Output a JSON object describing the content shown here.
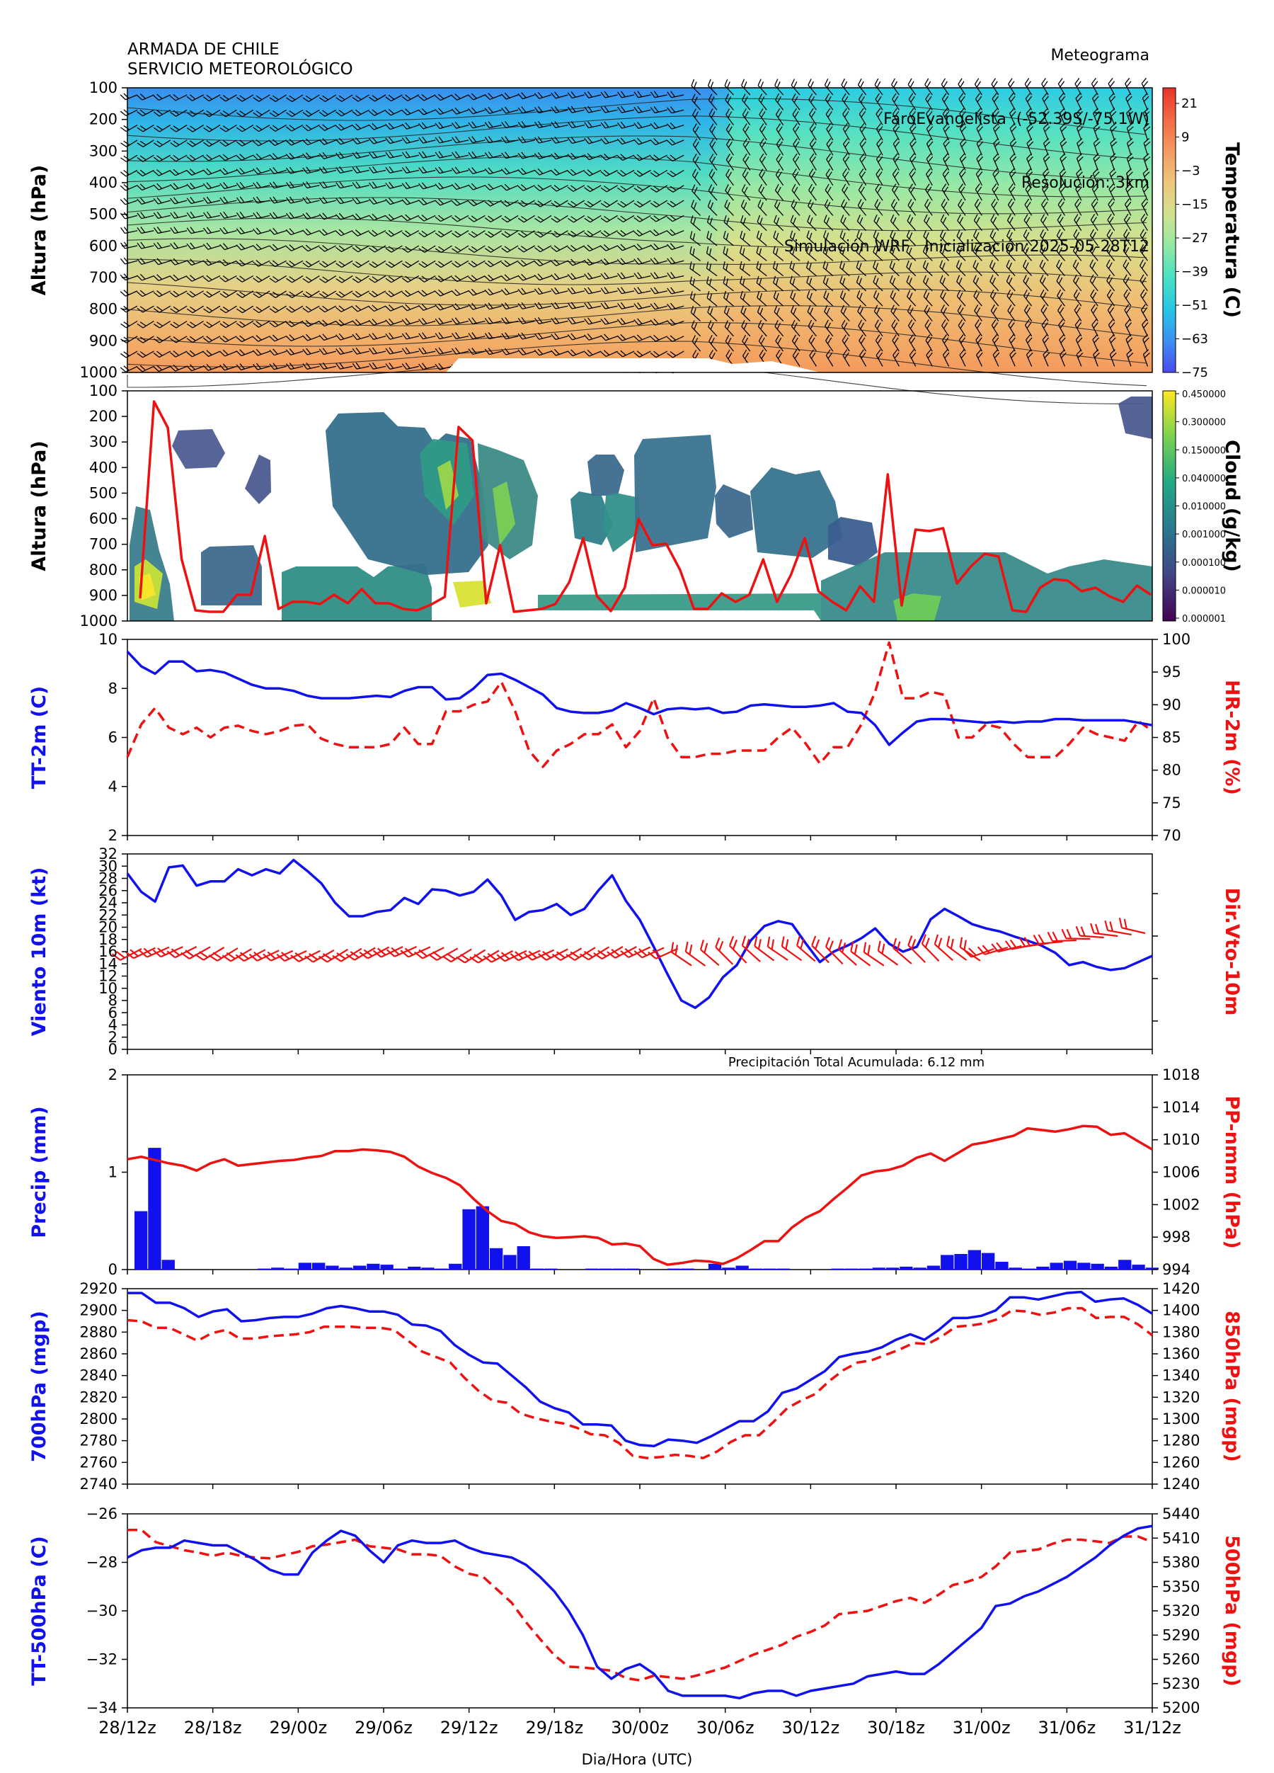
{
  "header": {
    "org1": "ARMADA DE CHILE",
    "org2": "SERVICIO METEOROLÓGICO",
    "meta1": "Meteograma",
    "meta2": "FaroEvangelista  (-52.39S/-75.1W)",
    "meta3": "Resolución: 3km",
    "meta4": "Simulación WRF   Inicialización:2025-05-28T12"
  },
  "chart_data": [
    {
      "type": "heatmap",
      "id": "temperature",
      "ylabel": "Altura (hPa)",
      "clabel": "Temperatura (C)",
      "yticks": [
        "100",
        "200",
        "300",
        "400",
        "500",
        "600",
        "700",
        "800",
        "900",
        "1000"
      ],
      "colorbar_ticks": [
        "21",
        "9",
        "−3",
        "−15",
        "−27",
        "−39",
        "−51",
        "−63",
        "−75"
      ],
      "colors": [
        "#4a4af0",
        "#3c8ff0",
        "#29c6e6",
        "#47e0c2",
        "#92e9a3",
        "#d1e28e",
        "#efc77c",
        "#f49a62",
        "#f26b44",
        "#e8312a"
      ]
    },
    {
      "type": "heatmap",
      "id": "cloud",
      "ylabel": "Altura (hPa)",
      "clabel": "Cloud (g/kg)",
      "yticks": [
        "100",
        "200",
        "300",
        "400",
        "500",
        "600",
        "700",
        "800",
        "900",
        "1000"
      ],
      "colorbar_ticks": [
        "0.450000",
        "0.300000",
        "0.150000",
        "0.040000",
        "0.010000",
        "0.001000",
        "0.000100",
        "0.000010",
        "0.000001"
      ],
      "colors": [
        "#440154",
        "#414487",
        "#2a788e",
        "#22a884",
        "#7ad151",
        "#fde725"
      ]
    },
    {
      "type": "line",
      "id": "tt2m",
      "ylabel": "TT-2m (C)",
      "y2label": "HR-2m (%)",
      "ylim": [
        2,
        10
      ],
      "y2lim": [
        70,
        100
      ],
      "yticks": [
        "2",
        "4",
        "6",
        "8",
        "10"
      ],
      "y2ticks": [
        "70",
        "75",
        "80",
        "85",
        "90",
        "95",
        "100"
      ],
      "series": [
        {
          "axis": "left",
          "color": "#1111ee",
          "dash": false,
          "values": [
            9.5,
            8.9,
            8.6,
            9.1,
            9.1,
            8.7,
            8.75,
            8.65,
            8.4,
            8.15,
            8.0,
            8.0,
            7.9,
            7.7,
            7.6,
            7.6,
            7.6,
            7.65,
            7.7,
            7.65,
            7.9,
            8.05,
            8.05,
            7.55,
            7.6,
            8.0,
            8.55,
            8.6,
            8.35,
            8.05,
            7.75,
            7.2,
            7.05,
            7.0,
            7.0,
            7.1,
            7.4,
            7.2,
            6.95,
            7.15,
            7.2,
            7.15,
            7.2,
            7.0,
            7.05,
            7.3,
            7.35,
            7.3,
            7.25,
            7.25,
            7.3,
            7.4,
            7.05,
            7.0,
            6.5,
            5.7,
            6.2,
            6.65,
            6.75,
            6.75,
            6.7,
            6.65,
            6.6,
            6.65,
            6.6,
            6.65,
            6.65,
            6.75,
            6.75,
            6.7,
            6.7,
            6.7,
            6.7,
            6.6,
            6.5
          ]
        },
        {
          "axis": "right",
          "color": "#ee1111",
          "dash": true,
          "values": [
            82,
            87,
            89.5,
            86.5,
            85.5,
            86.5,
            85,
            86.5,
            86.8,
            86,
            85.5,
            86,
            86.8,
            87,
            84.8,
            84,
            83.5,
            83.5,
            83.5,
            84,
            86.5,
            84,
            84,
            89,
            89,
            90,
            90.5,
            93.5,
            89,
            83,
            80.5,
            83,
            84,
            85.5,
            85.5,
            87,
            83.5,
            86,
            91,
            85,
            82,
            82,
            82.5,
            82.5,
            83,
            83,
            83,
            85,
            86.5,
            84,
            81,
            83.5,
            83.5,
            87,
            92,
            99.5,
            91,
            91,
            92,
            91.5,
            85,
            85,
            87,
            86.5,
            84,
            82,
            82,
            82,
            84,
            86.5,
            85.5,
            85,
            84.5,
            87.5,
            86
          ]
        }
      ]
    },
    {
      "type": "line",
      "id": "wind10m",
      "ylabel": "Viento 10m (kt)",
      "y2label": "Dir.Vto-10m",
      "ylim": [
        0,
        32
      ],
      "yticks": [
        "0",
        "2",
        "4",
        "6",
        "8",
        "10",
        "12",
        "14",
        "16",
        "18",
        "20",
        "22",
        "24",
        "26",
        "28",
        "30",
        "32"
      ],
      "series": [
        {
          "axis": "left",
          "color": "#1111ee",
          "dash": false,
          "values": [
            28.8,
            25.8,
            24.2,
            29.8,
            30.1,
            26.8,
            27.5,
            27.5,
            29.5,
            28.5,
            29.5,
            28.8,
            31.0,
            29.2,
            27.2,
            24.0,
            21.8,
            21.8,
            22.5,
            22.8,
            24.8,
            23.8,
            26.2,
            26.0,
            25.2,
            25.8,
            27.8,
            25.2,
            21.2,
            22.5,
            22.8,
            23.8,
            22.0,
            23.0,
            26.0,
            28.5,
            24.3,
            21.2,
            16.8,
            12.3,
            8.0,
            6.8,
            8.5,
            11.8,
            13.8,
            17.8,
            20.2,
            21.0,
            20.5,
            17.3,
            14.3,
            16.0,
            17.0,
            18.2,
            19.8,
            17.3,
            16.0,
            16.8,
            21.3,
            23.0,
            21.8,
            20.5,
            19.8,
            19.3,
            18.5,
            17.8,
            17.0,
            15.8,
            13.8,
            14.3,
            13.5,
            13.0,
            13.3,
            14.3,
            15.3
          ]
        }
      ]
    },
    {
      "type": "bar",
      "id": "precip",
      "title": "Precipitación Total Acumulada: 6.12 mm",
      "ylabel": "Precip (mm)",
      "y2label": "PP-nmm (hPa)",
      "ylim": [
        0,
        2
      ],
      "y2lim": [
        994,
        1018
      ],
      "yticks": [
        "0",
        "1",
        "2"
      ],
      "y2ticks": [
        "994",
        "998",
        "1002",
        "1006",
        "1010",
        "1014",
        "1018"
      ],
      "series": [
        {
          "axis": "left",
          "type": "bar",
          "color": "#1111ee",
          "values": [
            0.6,
            1.25,
            0.1,
            0,
            0,
            0,
            0,
            0,
            0,
            0.01,
            0.02,
            0.01,
            0.07,
            0.07,
            0.04,
            0.02,
            0.04,
            0.06,
            0.05,
            0.01,
            0.03,
            0.02,
            0.01,
            0.06,
            0.62,
            0.65,
            0.22,
            0.15,
            0.24,
            0.01,
            0.01,
            0,
            0,
            0.01,
            0.01,
            0.01,
            0.01,
            0,
            0,
            0.01,
            0.01,
            0,
            0.06,
            0.02,
            0.04,
            0.01,
            0.01,
            0.01,
            0,
            0,
            0,
            0.01,
            0.01,
            0.01,
            0.02,
            0.02,
            0.03,
            0.02,
            0.04,
            0.15,
            0.16,
            0.2,
            0.17,
            0.08,
            0.02,
            0.01,
            0.03,
            0.07,
            0.09,
            0.07,
            0.06,
            0.03,
            0.1,
            0.05,
            0.02
          ]
        },
        {
          "axis": "right",
          "type": "line",
          "color": "#ee1111",
          "dash": false,
          "values": [
            1007.6,
            1007.9,
            1007.5,
            1007.1,
            1006.8,
            1006.2,
            1007.1,
            1007.6,
            1006.8,
            1007.0,
            1007.2,
            1007.4,
            1007.5,
            1007.8,
            1008.0,
            1008.6,
            1008.6,
            1008.8,
            1008.7,
            1008.5,
            1007.9,
            1006.7,
            1005.9,
            1005.3,
            1004.4,
            1002.7,
            1001.2,
            1000.0,
            999.6,
            998.6,
            998.1,
            997.9,
            998.0,
            998.1,
            997.9,
            997.1,
            997.2,
            996.9,
            995.3,
            994.6,
            994.8,
            995.1,
            995.0,
            994.7,
            995.4,
            996.4,
            997.5,
            997.5,
            999.2,
            1000.4,
            1001.2,
            1002.7,
            1004.1,
            1005.6,
            1006.1,
            1006.3,
            1006.8,
            1007.8,
            1008.3,
            1007.4,
            1008.4,
            1009.4,
            1009.7,
            1010.1,
            1010.5,
            1011.4,
            1011.2,
            1011.0,
            1011.3,
            1011.7,
            1011.6,
            1010.6,
            1010.8,
            1009.8,
            1008.8
          ]
        }
      ]
    },
    {
      "type": "line",
      "id": "geop",
      "ylabel": "700hPa (mgp)",
      "y2label": "850hPa (mgp)",
      "ylim": [
        2740,
        2920
      ],
      "y2lim": [
        1240,
        1420
      ],
      "yticks": [
        "2740",
        "2760",
        "2780",
        "2800",
        "2820",
        "2840",
        "2860",
        "2880",
        "2900",
        "2920"
      ],
      "y2ticks": [
        "1240",
        "1260",
        "1280",
        "1300",
        "1320",
        "1340",
        "1360",
        "1380",
        "1400",
        "1420"
      ],
      "series": [
        {
          "axis": "left",
          "color": "#1111ee",
          "dash": false,
          "values": [
            2916,
            2916,
            2907,
            2907,
            2902,
            2894,
            2899,
            2901,
            2890,
            2891,
            2893,
            2894,
            2894,
            2897,
            2902,
            2904,
            2902,
            2899,
            2899,
            2896,
            2887,
            2886,
            2881,
            2868,
            2859,
            2852,
            2851,
            2840,
            2829,
            2816,
            2810,
            2806,
            2795,
            2795,
            2794,
            2780,
            2776,
            2775,
            2781,
            2780,
            2778,
            2784,
            2791,
            2798,
            2798,
            2807,
            2824,
            2828,
            2836,
            2844,
            2857,
            2860,
            2862,
            2866,
            2873,
            2878,
            2873,
            2882,
            2893,
            2893,
            2895,
            2900,
            2912,
            2912,
            2910,
            2913,
            2916,
            2917,
            2908,
            2910,
            2911,
            2905,
            2897
          ]
        },
        {
          "axis": "right",
          "color": "#ee1111",
          "dash": true,
          "values": [
            1391,
            1390,
            1384,
            1384,
            1378,
            1372,
            1379,
            1382,
            1374,
            1374,
            1376,
            1377,
            1378,
            1380,
            1385,
            1385,
            1385,
            1384,
            1384,
            1382,
            1372,
            1362,
            1357,
            1352,
            1338,
            1326,
            1317,
            1315,
            1305,
            1301,
            1298,
            1296,
            1292,
            1286,
            1285,
            1278,
            1266,
            1264,
            1265,
            1267,
            1266,
            1264,
            1270,
            1279,
            1285,
            1285,
            1297,
            1310,
            1317,
            1323,
            1335,
            1345,
            1352,
            1354,
            1359,
            1364,
            1370,
            1369,
            1376,
            1385,
            1386,
            1388,
            1392,
            1400,
            1399,
            1396,
            1398,
            1402,
            1402,
            1393,
            1394,
            1394,
            1387,
            1377
          ]
        }
      ]
    },
    {
      "type": "line",
      "id": "tt500",
      "ylabel": "TT-500hPa (C)",
      "y2label": "500hPa (mgp)",
      "ylim": [
        -34,
        -26
      ],
      "y2lim": [
        5200,
        5440
      ],
      "yticks": [
        "−34",
        "−32",
        "−30",
        "−28",
        "−26"
      ],
      "y2ticks": [
        "5200",
        "5230",
        "5260",
        "5290",
        "5320",
        "5350",
        "5380",
        "5410",
        "5440"
      ],
      "series": [
        {
          "axis": "left",
          "color": "#1111ee",
          "dash": false,
          "values": [
            -27.8,
            -27.5,
            -27.4,
            -27.4,
            -27.1,
            -27.2,
            -27.3,
            -27.3,
            -27.6,
            -27.9,
            -28.3,
            -28.5,
            -28.5,
            -27.6,
            -27.1,
            -26.7,
            -26.9,
            -27.5,
            -28.0,
            -27.3,
            -27.1,
            -27.2,
            -27.2,
            -27.1,
            -27.4,
            -27.6,
            -27.7,
            -27.8,
            -28.1,
            -28.6,
            -29.2,
            -30.0,
            -31.0,
            -32.3,
            -32.8,
            -32.4,
            -32.2,
            -32.6,
            -33.3,
            -33.5,
            -33.5,
            -33.5,
            -33.5,
            -33.6,
            -33.4,
            -33.3,
            -33.3,
            -33.5,
            -33.3,
            -33.2,
            -33.1,
            -33.0,
            -32.7,
            -32.6,
            -32.5,
            -32.6,
            -32.6,
            -32.2,
            -31.7,
            -31.2,
            -30.7,
            -29.8,
            -29.7,
            -29.4,
            -29.2,
            -28.9,
            -28.6,
            -28.2,
            -27.8,
            -27.3,
            -26.9,
            -26.6,
            -26.5
          ]
        },
        {
          "axis": "right",
          "color": "#ee1111",
          "dash": true,
          "values": [
            5420,
            5420,
            5405,
            5400,
            5395,
            5392,
            5388,
            5392,
            5388,
            5386,
            5385,
            5389,
            5393,
            5400,
            5402,
            5405,
            5408,
            5400,
            5398,
            5396,
            5390,
            5390,
            5388,
            5375,
            5366,
            5362,
            5346,
            5330,
            5306,
            5285,
            5265,
            5251,
            5250,
            5248,
            5246,
            5237,
            5234,
            5240,
            5238,
            5236,
            5240,
            5245,
            5250,
            5258,
            5266,
            5272,
            5278,
            5288,
            5294,
            5302,
            5316,
            5318,
            5320,
            5326,
            5332,
            5336,
            5330,
            5340,
            5352,
            5356,
            5362,
            5375,
            5392,
            5394,
            5396,
            5403,
            5408,
            5408,
            5406,
            5404,
            5412,
            5412,
            5405
          ]
        }
      ]
    }
  ],
  "xaxis": {
    "label": "Dia/Hora (UTC)",
    "ticks": [
      "28/12z",
      "28/18z",
      "29/00z",
      "29/06z",
      "29/12z",
      "29/18z",
      "30/00z",
      "30/06z",
      "30/12z",
      "30/18z",
      "31/00z",
      "31/06z",
      "31/12z"
    ]
  }
}
